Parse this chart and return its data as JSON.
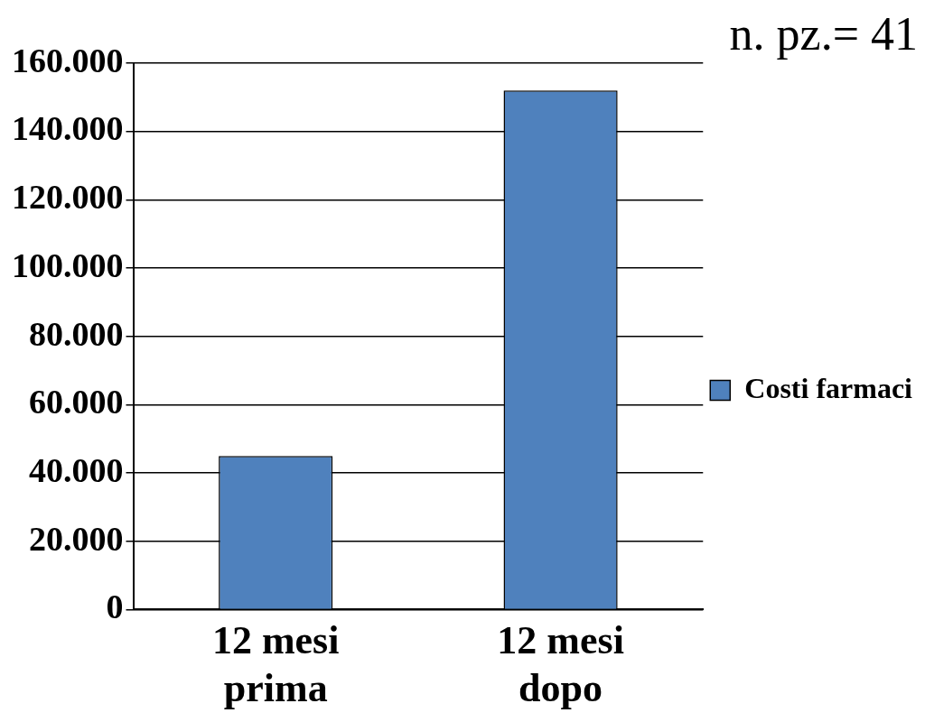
{
  "chart_data": {
    "type": "bar",
    "categories": [
      "12 mesi prima",
      "12 mesi dopo"
    ],
    "series": [
      {
        "name": "Costi farmaci",
        "color": "#4f81bd",
        "values": [
          45000,
          152000
        ]
      }
    ],
    "ylim": [
      0,
      160000
    ],
    "yticks": [
      {
        "value": 0,
        "label": "0"
      },
      {
        "value": 20000,
        "label": "20.000"
      },
      {
        "value": 40000,
        "label": "40.000"
      },
      {
        "value": 60000,
        "label": "60.000"
      },
      {
        "value": 80000,
        "label": "80.000"
      },
      {
        "value": 100000,
        "label": "100.000"
      },
      {
        "value": 120000,
        "label": "120.000"
      },
      {
        "value": 140000,
        "label": "140.000"
      },
      {
        "value": 160000,
        "label": "160.000"
      }
    ],
    "grid": "y",
    "legend": "right",
    "annotations": [
      "n. pz.= 41"
    ]
  }
}
